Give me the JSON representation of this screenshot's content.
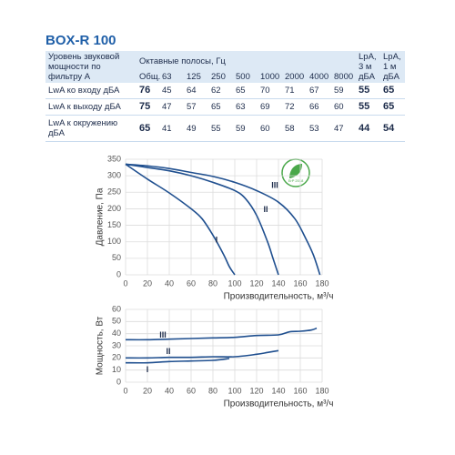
{
  "title": "BOX-R 100",
  "table": {
    "header": {
      "label": "Уровень звуковой мощности по фильтру А",
      "total": "Общ.",
      "bands_title": "Октавные полосы, Гц",
      "bands": [
        "63",
        "125",
        "250",
        "500",
        "1000",
        "2000",
        "4000",
        "8000"
      ],
      "lpa3": "LpA, 3 м дБА",
      "lpa1": "LpA, 1 м дБА"
    },
    "rows": [
      {
        "label": "LwA ко входу дБА",
        "values": [
          76,
          45,
          64,
          62,
          65,
          70,
          71,
          67,
          59,
          55,
          65
        ]
      },
      {
        "label": "LwA к выходу дБА",
        "values": [
          75,
          47,
          57,
          65,
          63,
          69,
          72,
          66,
          60,
          55,
          65
        ]
      },
      {
        "label": "LwA к окружению дБА",
        "values": [
          65,
          41,
          49,
          55,
          59,
          60,
          58,
          53,
          47,
          44,
          54
        ]
      }
    ]
  },
  "badge": "ErP 2018",
  "chart_data": [
    {
      "type": "line",
      "ylabel": "Давление, Па",
      "xlabel": "Производительность, м³/ч",
      "xlim": [
        0,
        180
      ],
      "xticks": [
        0,
        20,
        40,
        60,
        80,
        100,
        120,
        140,
        160,
        180
      ],
      "ylim": [
        0,
        350
      ],
      "yticks": [
        0,
        50,
        100,
        150,
        200,
        250,
        300,
        350
      ],
      "grid": true,
      "series": [
        {
          "name": "I",
          "color": "#1f4f8f",
          "x": [
            0,
            20,
            40,
            60,
            70,
            80,
            90,
            95,
            100
          ],
          "values": [
            335,
            290,
            248,
            200,
            170,
            120,
            60,
            25,
            0
          ]
        },
        {
          "name": "II",
          "color": "#1f4f8f",
          "x": [
            0,
            20,
            40,
            60,
            80,
            100,
            110,
            120,
            130,
            135,
            140
          ],
          "values": [
            335,
            325,
            315,
            300,
            280,
            255,
            230,
            180,
            100,
            50,
            0
          ]
        },
        {
          "name": "III",
          "color": "#1f4f8f",
          "x": [
            0,
            20,
            40,
            60,
            80,
            100,
            120,
            140,
            155,
            165,
            172,
            178
          ],
          "values": [
            335,
            330,
            322,
            310,
            298,
            280,
            255,
            220,
            170,
            110,
            60,
            0
          ]
        }
      ]
    },
    {
      "type": "line",
      "ylabel": "Мощность, Вт",
      "xlabel": "Производительность, м³/ч",
      "xlim": [
        0,
        180
      ],
      "xticks": [
        0,
        20,
        40,
        60,
        80,
        100,
        120,
        140,
        160,
        180
      ],
      "ylim": [
        0,
        60
      ],
      "yticks": [
        0,
        10,
        20,
        30,
        40,
        50,
        60
      ],
      "grid": true,
      "series": [
        {
          "name": "I",
          "color": "#1f4f8f",
          "x": [
            0,
            20,
            40,
            60,
            80,
            95
          ],
          "values": [
            16,
            16,
            17,
            17.5,
            18,
            19.5
          ]
        },
        {
          "name": "II",
          "color": "#1f4f8f",
          "x": [
            0,
            20,
            40,
            60,
            80,
            100,
            120,
            130,
            140
          ],
          "values": [
            20,
            20,
            20.5,
            20.5,
            21,
            21,
            23,
            24.5,
            26
          ]
        },
        {
          "name": "III",
          "color": "#1f4f8f",
          "x": [
            0,
            20,
            40,
            60,
            80,
            100,
            120,
            140,
            150,
            160,
            170,
            175
          ],
          "values": [
            35,
            35,
            35.5,
            36,
            36.5,
            37,
            38.5,
            39,
            41.5,
            42,
            43,
            44.5
          ]
        }
      ]
    }
  ]
}
